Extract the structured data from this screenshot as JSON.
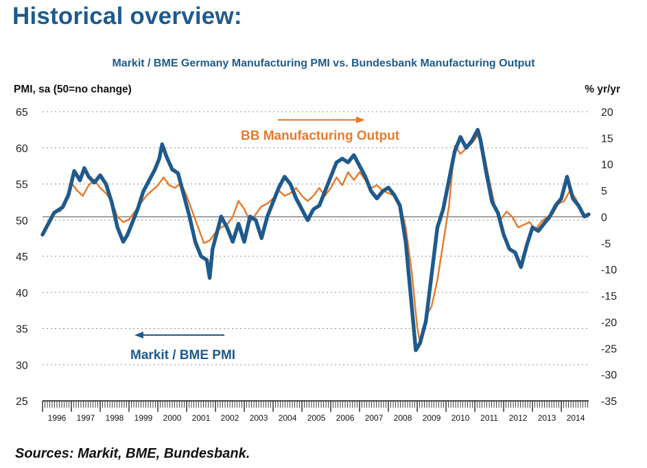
{
  "page": {
    "title": "Historical overview:",
    "sources": "Sources: Markit, BME, Bundesbank."
  },
  "chart_data": {
    "type": "line",
    "title": "Markit / BME Germany Manufacturing PMI vs. Bundesbank Manufacturing Output",
    "ylabel_left": "PMI, sa (50=no change)",
    "ylabel_right": "% yr/yr",
    "ylim_left": [
      25,
      65
    ],
    "ylim_right": [
      -35,
      20
    ],
    "yticks_left": [
      "65",
      "60",
      "55",
      "50",
      "45",
      "40",
      "35",
      "30",
      "25"
    ],
    "yticks_right": [
      "20",
      "15",
      "10",
      "5",
      "0",
      "-5",
      "-10",
      "-15",
      "-20",
      "-25",
      "-30",
      "-35"
    ],
    "xlim": [
      1996.0,
      2014.95
    ],
    "x_ticklabels": [
      "1996",
      "1997",
      "1998",
      "1999",
      "2000",
      "2001",
      "2002",
      "2003",
      "2004",
      "2005",
      "2006",
      "2007",
      "2008",
      "2009",
      "2010",
      "2011",
      "2012",
      "2013",
      "2014"
    ],
    "grid": "horizontal dotted",
    "annotations": [
      {
        "text": "BB Manufacturing Output",
        "series": "output",
        "arrow": "right"
      },
      {
        "text": "Markit / BME PMI",
        "series": "pmi",
        "arrow": "left"
      }
    ],
    "colors": {
      "pmi": "#1f5a8c",
      "output": "#e87a2b"
    },
    "series": [
      {
        "key": "pmi",
        "axis": "left",
        "x": [
          1996.0,
          1996.2,
          1996.4,
          1996.7,
          1996.9,
          1997.1,
          1997.3,
          1997.45,
          1997.6,
          1997.8,
          1998.0,
          1998.2,
          1998.4,
          1998.6,
          1998.8,
          1998.95,
          1999.1,
          1999.3,
          1999.5,
          1999.7,
          1999.9,
          2000.05,
          2000.15,
          2000.3,
          2000.5,
          2000.7,
          2000.9,
          2001.1,
          2001.3,
          2001.5,
          2001.7,
          2001.8,
          2001.9,
          2002.0,
          2002.2,
          2002.4,
          2002.6,
          2002.8,
          2003.0,
          2003.2,
          2003.4,
          2003.6,
          2003.8,
          2004.0,
          2004.2,
          2004.4,
          2004.6,
          2004.8,
          2005.0,
          2005.2,
          2005.4,
          2005.6,
          2005.8,
          2006.0,
          2006.2,
          2006.4,
          2006.6,
          2006.8,
          2007.0,
          2007.2,
          2007.4,
          2007.6,
          2007.8,
          2008.0,
          2008.2,
          2008.4,
          2008.6,
          2008.8,
          2008.95,
          2009.1,
          2009.3,
          2009.5,
          2009.7,
          2009.9,
          2010.1,
          2010.3,
          2010.5,
          2010.7,
          2010.9,
          2011.1,
          2011.2,
          2011.4,
          2011.6,
          2011.8,
          2012.0,
          2012.2,
          2012.4,
          2012.6,
          2012.8,
          2013.0,
          2013.2,
          2013.4,
          2013.6,
          2013.8,
          2014.0,
          2014.2,
          2014.4,
          2014.6,
          2014.8,
          2014.95
        ],
        "values": [
          48.0,
          49.5,
          51.0,
          51.8,
          53.5,
          56.8,
          55.5,
          57.2,
          56.0,
          55.2,
          56.2,
          55.0,
          52.5,
          49.0,
          47.0,
          48.0,
          49.5,
          51.5,
          54.0,
          55.5,
          57.0,
          58.5,
          60.5,
          58.8,
          57.0,
          56.5,
          53.5,
          50.5,
          47.0,
          45.0,
          44.5,
          42.0,
          46.0,
          47.5,
          50.5,
          49.0,
          47.0,
          49.5,
          47.0,
          50.5,
          50.0,
          47.5,
          50.5,
          52.5,
          54.5,
          56.0,
          55.0,
          53.0,
          51.5,
          50.0,
          51.5,
          52.0,
          54.0,
          56.0,
          58.0,
          58.5,
          58.0,
          59.0,
          57.5,
          56.0,
          54.0,
          53.0,
          54.0,
          54.5,
          53.5,
          52.0,
          47.0,
          38.5,
          32.0,
          33.0,
          36.0,
          42.5,
          49.0,
          51.5,
          55.5,
          59.5,
          61.5,
          60.0,
          61.0,
          62.5,
          61.0,
          56.5,
          52.5,
          51.0,
          48.0,
          46.0,
          45.5,
          43.5,
          46.5,
          49.0,
          48.5,
          49.5,
          50.5,
          52.0,
          53.0,
          56.0,
          53.0,
          52.0,
          50.5,
          50.8
        ]
      },
      {
        "key": "output",
        "axis": "right",
        "x": [
          1996.6,
          1996.8,
          1997.0,
          1997.2,
          1997.4,
          1997.6,
          1997.8,
          1998.0,
          1998.2,
          1998.4,
          1998.6,
          1998.8,
          1999.0,
          1999.2,
          1999.4,
          1999.6,
          1999.8,
          2000.0,
          2000.2,
          2000.4,
          2000.6,
          2000.8,
          2001.0,
          2001.2,
          2001.4,
          2001.6,
          2001.8,
          2002.0,
          2002.2,
          2002.4,
          2002.6,
          2002.8,
          2003.0,
          2003.2,
          2003.4,
          2003.6,
          2003.8,
          2004.0,
          2004.2,
          2004.4,
          2004.6,
          2004.8,
          2005.0,
          2005.2,
          2005.4,
          2005.6,
          2005.8,
          2006.0,
          2006.2,
          2006.4,
          2006.6,
          2006.8,
          2007.0,
          2007.2,
          2007.4,
          2007.6,
          2007.8,
          2008.0,
          2008.2,
          2008.4,
          2008.6,
          2008.8,
          2009.0,
          2009.1,
          2009.3,
          2009.5,
          2009.7,
          2009.9,
          2010.1,
          2010.3,
          2010.5,
          2010.7,
          2010.9,
          2011.1,
          2011.3,
          2011.5,
          2011.7,
          2011.9,
          2012.1,
          2012.3,
          2012.5,
          2012.7,
          2012.9,
          2013.1,
          2013.3,
          2013.5,
          2013.7,
          2013.9,
          2014.1,
          2014.3,
          2014.5,
          2014.7,
          2014.9
        ],
        "values": [
          1.0,
          2.5,
          6.5,
          5.0,
          4.0,
          6.0,
          7.0,
          5.5,
          4.5,
          3.0,
          0.0,
          -1.0,
          -0.5,
          1.0,
          2.5,
          4.0,
          5.0,
          6.0,
          7.5,
          6.0,
          5.5,
          6.5,
          4.0,
          1.0,
          -2.0,
          -5.0,
          -4.5,
          -3.0,
          -2.0,
          -1.5,
          0.0,
          3.0,
          1.5,
          -1.0,
          0.5,
          2.0,
          2.5,
          3.5,
          5.0,
          4.0,
          4.5,
          5.5,
          4.0,
          3.0,
          4.0,
          5.5,
          4.0,
          5.5,
          7.5,
          6.0,
          8.5,
          7.0,
          8.5,
          7.0,
          5.5,
          6.0,
          5.0,
          4.5,
          4.0,
          2.5,
          -2.0,
          -10.0,
          -21.0,
          -24.0,
          -19.0,
          -17.0,
          -12.0,
          -5.0,
          2.0,
          13.5,
          12.0,
          13.0,
          14.0,
          15.5,
          12.5,
          7.0,
          2.0,
          -0.5,
          1.0,
          0.0,
          -2.0,
          -1.5,
          -1.0,
          -2.5,
          -1.0,
          0.0,
          0.5,
          2.5,
          3.0,
          5.0,
          3.5,
          1.0,
          0.0
        ]
      }
    ]
  }
}
